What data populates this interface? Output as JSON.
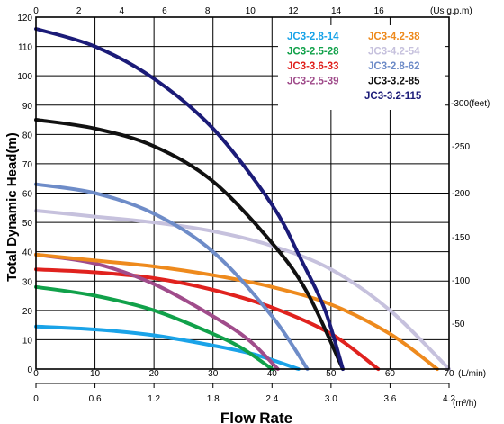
{
  "chart_data": {
    "type": "line",
    "ylabel": "Total Dynamic Head(m)",
    "xlabel": "Flow Rate",
    "x_units": {
      "lmin": "(L/min)",
      "us_gpm": "(Us g.p.m)",
      "m3h": "(m³/h)"
    },
    "y_units": {
      "feet": "-300(feet)"
    },
    "axes": {
      "lmin": {
        "range": [
          0,
          70
        ],
        "ticks": [
          "0",
          "10",
          "20",
          "30",
          "40",
          "50",
          "60",
          "70"
        ]
      },
      "us_gpm": {
        "ticks": [
          "0",
          "2",
          "4",
          "6",
          "8",
          "10",
          "12",
          "14",
          "16"
        ]
      },
      "m3h": {
        "ticks": [
          "0",
          "0.6",
          "1.2",
          "1.8",
          "2.4",
          "3.0",
          "3.6",
          "4.2"
        ]
      },
      "head_m": {
        "range": [
          0,
          120
        ],
        "ticks": [
          "0",
          "10",
          "20",
          "30",
          "40",
          "50",
          "60",
          "70",
          "80",
          "90",
          "100",
          "110",
          "120"
        ]
      },
      "head_ft": {
        "ticks": [
          "-50",
          "-100",
          "-150",
          "-200",
          "-250"
        ]
      }
    },
    "grid": true,
    "legend_position": "top-right",
    "series": [
      {
        "name": "JC3-2.8-14",
        "color": "#1AA3E8",
        "x": [
          0,
          10,
          20,
          30,
          37,
          44.5
        ],
        "y": [
          14.5,
          13.5,
          11.5,
          8,
          5,
          0
        ]
      },
      {
        "name": "JC3-2.5-28",
        "color": "#11A14A",
        "x": [
          0,
          10,
          20,
          30,
          35,
          40
        ],
        "y": [
          28,
          25,
          20,
          12,
          7,
          0
        ]
      },
      {
        "name": "JC3-3.6-33",
        "color": "#E0221E",
        "x": [
          0,
          10,
          20,
          30,
          40,
          50,
          58
        ],
        "y": [
          34,
          33,
          31,
          27,
          21,
          12,
          0
        ]
      },
      {
        "name": "JC3-2.5-39",
        "color": "#A04C8B",
        "x": [
          0,
          10,
          20,
          30,
          36,
          41
        ],
        "y": [
          39,
          36,
          29,
          18,
          10,
          0
        ]
      },
      {
        "name": "JC3-4.2-38",
        "color": "#EE8A1D",
        "x": [
          0,
          10,
          20,
          30,
          40,
          50,
          60,
          68
        ],
        "y": [
          39,
          37,
          35,
          32,
          28,
          22,
          12,
          0
        ]
      },
      {
        "name": "JC3-4.2-54",
        "color": "#C6C1DD",
        "x": [
          0,
          10,
          20,
          30,
          40,
          50,
          60,
          70
        ],
        "y": [
          54,
          52,
          50,
          47,
          42,
          34,
          20,
          0
        ]
      },
      {
        "name": "JC3-2.8-62",
        "color": "#6E8CC8",
        "x": [
          0,
          10,
          20,
          30,
          40,
          46
        ],
        "y": [
          63,
          60,
          53,
          40,
          18,
          0
        ]
      },
      {
        "name": "JC3-3.2-85",
        "color": "#111111",
        "x": [
          0,
          10,
          20,
          30,
          40,
          46,
          52
        ],
        "y": [
          85,
          82,
          76,
          64,
          43,
          26,
          0
        ]
      },
      {
        "name": "JC3-3.2-115",
        "color": "#1B1B78",
        "x": [
          0,
          10,
          20,
          30,
          40,
          45,
          49,
          52
        ],
        "y": [
          116,
          110,
          99,
          82,
          56,
          37,
          20,
          0
        ]
      }
    ]
  }
}
